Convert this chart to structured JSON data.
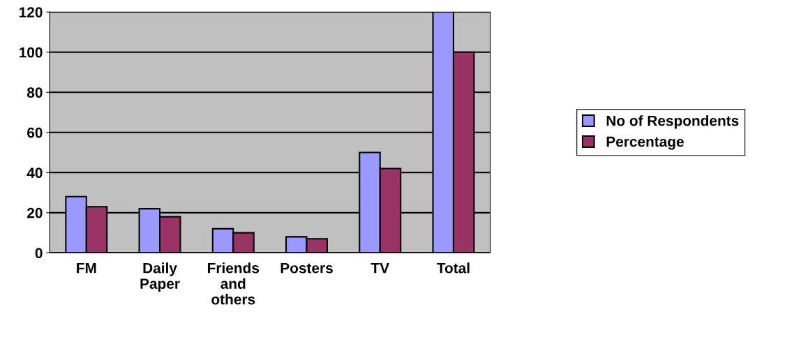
{
  "chart_data": {
    "type": "bar",
    "categories": [
      "FM",
      "Daily\nPaper",
      "Friends\nand\nothers",
      "Posters",
      "TV",
      "Total"
    ],
    "series": [
      {
        "name": "No of Respondents",
        "color": "#9999ff",
        "values": [
          28,
          22,
          12,
          8,
          50,
          120
        ]
      },
      {
        "name": "Percentage",
        "color": "#993366",
        "values": [
          23,
          18,
          10,
          7,
          42,
          100
        ]
      }
    ],
    "ylim": [
      0,
      120
    ],
    "yticks": [
      0,
      20,
      40,
      60,
      80,
      100,
      120
    ],
    "grid": "y",
    "legend": "right"
  }
}
